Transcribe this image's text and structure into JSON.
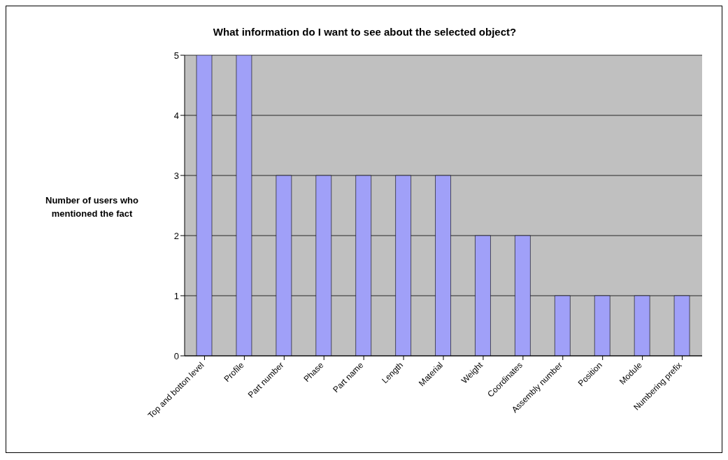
{
  "chart_data": {
    "type": "bar",
    "title": "What information do I want to see about the selected object?",
    "ylabel": "Number of users who mentioned the fact",
    "categories": [
      "Top and botton level",
      "Profile",
      "Part number",
      "Phase",
      "Part name",
      "Length",
      "Material",
      "Weight",
      "Coordinates",
      "Assembly number",
      "Position",
      "Module",
      "Numbering prefix"
    ],
    "values": [
      5,
      5,
      3,
      3,
      3,
      3,
      3,
      2,
      2,
      1,
      1,
      1,
      1
    ],
    "color": "#a0a0f8",
    "ylim": [
      0,
      5
    ],
    "yticks": [
      0,
      1,
      2,
      3,
      4,
      5
    ],
    "grid": "y"
  }
}
